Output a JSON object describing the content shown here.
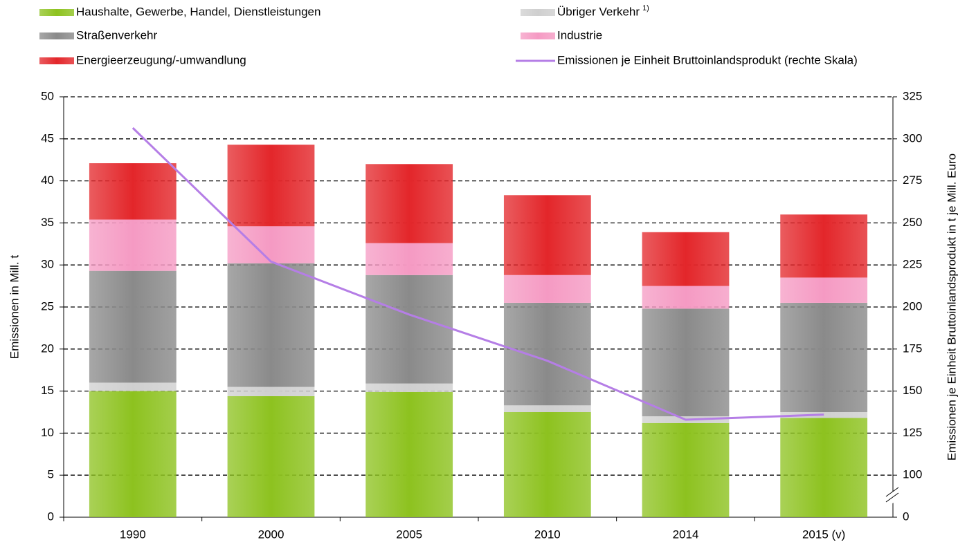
{
  "chart_data": {
    "type": "stacked_bar_line",
    "y_label": "Emissionen in Mill. t",
    "y2_label": "Emissionen je Einheit  Bruttoinlandsprodukt in t je Mill. Euro",
    "categories": [
      "1990",
      "2000",
      "2005",
      "2010",
      "2014",
      "2015 (v)"
    ],
    "series": [
      {
        "name": "Haushalte, Gewerbe, Handel, Dienstleistungen",
        "color": "#8dc21f",
        "values": [
          15,
          14.4,
          14.9,
          12.5,
          11.2,
          11.8
        ]
      },
      {
        "name": "Übriger Verkehr",
        "footnote": "1)",
        "color": "#cfcfcf",
        "values": [
          1,
          1.1,
          1,
          0.8,
          0.8,
          0.7
        ]
      },
      {
        "name": "Straßenverkehr",
        "color": "#8a8a8a",
        "values": [
          13.3,
          14.7,
          12.9,
          12.2,
          12.8,
          13
        ]
      },
      {
        "name": "Industrie",
        "color": "#f59ac3",
        "values": [
          6.1,
          4.4,
          3.8,
          3.3,
          2.7,
          3
        ]
      },
      {
        "name": "Energieerzeugung/-umwandlung",
        "color": "#e3262a",
        "values": [
          6.7,
          9.7,
          9.4,
          9.5,
          6.4,
          7.5
        ]
      },
      {
        "name": "Emissionen je Einheit Bruttoinlandsprodukt (rechte Skala)",
        "color": "#b57ee6",
        "axis": "y2",
        "line": true,
        "values": [
          306.5,
          227,
          195.5,
          168,
          133,
          136
        ]
      }
    ],
    "ylim": [
      0,
      50
    ],
    "yticks": [
      0,
      5,
      10,
      15,
      20,
      25,
      30,
      35,
      40,
      45,
      50
    ],
    "y2lim": [
      75,
      325
    ],
    "y2ticks": [
      0,
      100,
      125,
      150,
      175,
      200,
      225,
      250,
      275,
      300,
      325
    ],
    "y2_axis_break": true,
    "grid": true
  }
}
